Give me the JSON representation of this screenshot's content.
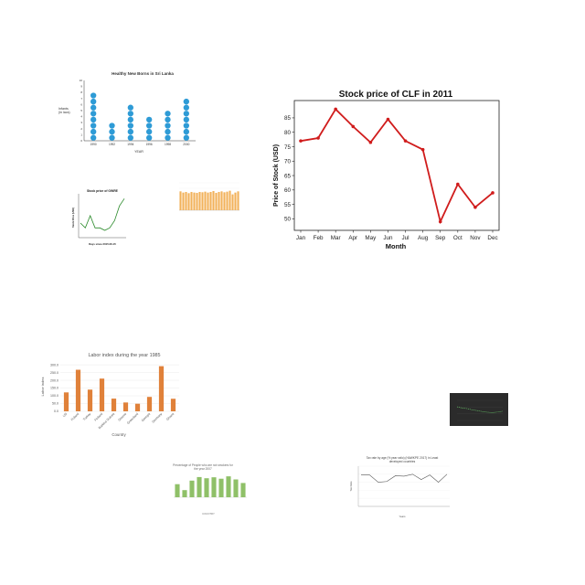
{
  "chart_data": [
    {
      "id": "healthy-births",
      "type": "pictograph",
      "title": "Healthy New Borns in Sri Lanka",
      "xlabel": "YEAR",
      "ylabel_lines": [
        "Infants",
        "(in lacs)"
      ],
      "categories": [
        "1990",
        "1992",
        "1994",
        "1996",
        "1998",
        "2000"
      ],
      "values": [
        8,
        3,
        6,
        4,
        5,
        7
      ],
      "ylim": [
        0,
        10
      ],
      "yticks": [
        "0",
        "1",
        "2",
        "3",
        "4",
        "5",
        "6",
        "7",
        "8",
        "9",
        "10"
      ],
      "color": "#2e9bd6"
    },
    {
      "id": "clf-stock",
      "type": "line",
      "title": "Stock price of CLF in 2011",
      "xlabel": "Month",
      "ylabel": "Price of Stock (USD)",
      "categories": [
        "Jan",
        "Feb",
        "Mar",
        "Apr",
        "May",
        "Jun",
        "Jul",
        "Aug",
        "Sep",
        "Oct",
        "Nov",
        "Dec"
      ],
      "values": [
        77,
        78,
        88,
        82,
        76.5,
        84.5,
        77,
        74,
        49,
        62,
        54,
        59
      ],
      "ylim": [
        46,
        91
      ],
      "yticks": [
        "50",
        "55",
        "60",
        "65",
        "70",
        "75",
        "80",
        "85"
      ],
      "color": "#d01c1c"
    },
    {
      "id": "small-stock",
      "type": "line",
      "title": "Stock price of GWRE",
      "xlabel": "Days since 2015-06-15",
      "ylabel": "Stock Price (USD)",
      "values": [
        3,
        2,
        4.5,
        2,
        2,
        1.5,
        2,
        3.5,
        6.5,
        8
      ],
      "ylim": [
        0,
        9
      ],
      "color": "#2a8a2a"
    },
    {
      "id": "orange-bars-small",
      "type": "bar",
      "values": [
        62,
        58,
        60,
        56,
        60,
        58,
        57,
        60,
        59,
        61,
        58,
        60,
        63,
        57,
        60,
        62,
        59,
        61,
        64,
        52,
        58,
        62
      ],
      "ylim": [
        0,
        90
      ],
      "color": "#f2b25a"
    },
    {
      "id": "labor-index",
      "type": "bar",
      "title": "Labor index during the year 1985",
      "xlabel": "Country",
      "ylabel": "Labor index",
      "categories": [
        "US",
        "Poland",
        "Turkey",
        "Finland",
        "Burkina Guinea",
        "Greece",
        "Greenland",
        "Georgia",
        "Germany",
        "Ghana"
      ],
      "values": [
        122,
        268,
        140,
        211,
        82,
        57,
        49,
        93,
        291,
        81
      ],
      "ylim": [
        0,
        330
      ],
      "yticks": [
        "0.0",
        "50.0",
        "100.0",
        "150.0",
        "200.0",
        "250.0",
        "300.0"
      ],
      "color": "#e0813a"
    },
    {
      "id": "dark-line",
      "type": "line",
      "values": [
        6.8,
        6.2,
        5.9,
        5.3,
        4.9,
        4.4,
        4.1,
        3.9,
        4.2,
        4.6
      ],
      "ylim": [
        0,
        10
      ],
      "color": "#6ed36e"
    },
    {
      "id": "non-smokers",
      "type": "bar",
      "title_lines": [
        "Percentage of People who are not smokers for",
        "the year 2007"
      ],
      "xlabel": "COUNTRY",
      "values": [
        55,
        30,
        70,
        85,
        80,
        84,
        78,
        88,
        75,
        60
      ],
      "ylim": [
        0,
        100
      ],
      "color": "#8fc068"
    },
    {
      "id": "tax-rate",
      "type": "line",
      "title_lines": [
        "Tax rate by age (% year ratio) (HAWKPE 2017) in Least",
        "developed countries"
      ],
      "xlabel": "Years",
      "ylabel": "Tax Rate",
      "values": [
        82,
        82,
        63,
        65,
        80,
        79,
        84,
        70,
        82,
        63,
        84
      ],
      "ylim": [
        0,
        105
      ],
      "color": "#555555"
    }
  ]
}
